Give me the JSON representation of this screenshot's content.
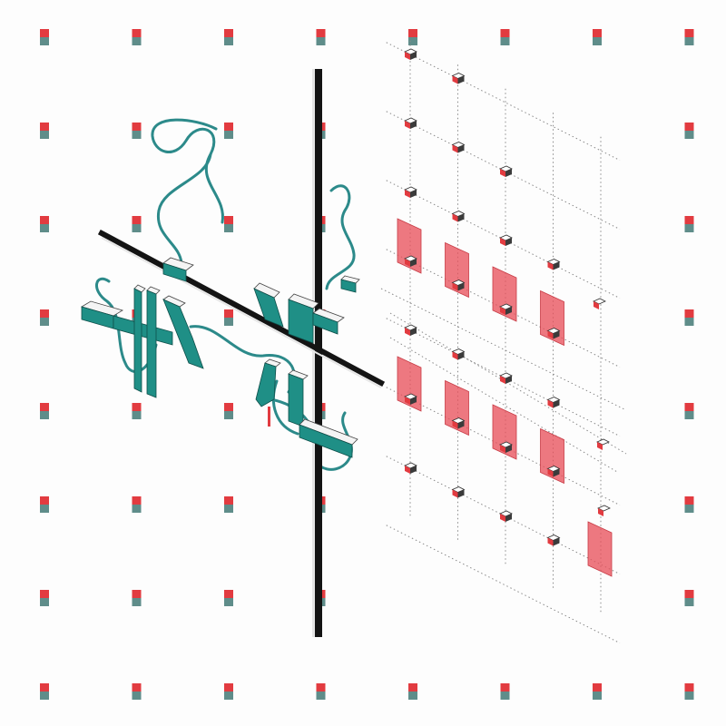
{
  "colors": {
    "background": "#fdfdfd",
    "marker_top": "#e23b40",
    "marker_bottom": "#5f8d8a",
    "beam": "#141414",
    "teal": "#1f8f86",
    "teal_shade": "#166c66",
    "ribbon": "#2c8a8a",
    "panel": "#e8525c",
    "dot_line": "#8a8a8a",
    "node": "#e23b40"
  },
  "marker_grid": {
    "columns": 8,
    "rows": 8
  },
  "node_lattice": {
    "rows": 7,
    "columns": 4
  },
  "panels": {
    "count": 9
  }
}
